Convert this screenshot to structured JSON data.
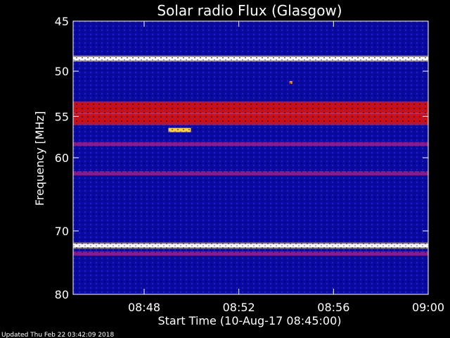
{
  "chart_data": {
    "type": "heatmap",
    "title": "Solar radio Flux (Glasgow)",
    "xlabel": "Start Time (10-Aug-17 08:45:00)",
    "ylabel": "Frequency [MHz]",
    "y_scale": "log",
    "ylim": [
      45,
      80
    ],
    "xlim": [
      "08:45",
      "09:00"
    ],
    "x_ticks": [
      "08:48",
      "08:52",
      "08:56",
      "09:00"
    ],
    "y_ticks": [
      "45",
      "50",
      "55",
      "60",
      "70",
      "80"
    ],
    "colormap": "blue-red-yellow-white",
    "colors": {
      "background": "#000000",
      "low": "#0a0aa0",
      "mid": "#cc1010",
      "high": "#ffffff"
    },
    "emission_bands": [
      {
        "freq_mhz": 48.7,
        "intensity": "very high",
        "note": "persistent white interference line"
      },
      {
        "freq_mhz": 54.0,
        "intensity": "high"
      },
      {
        "freq_mhz": 55.3,
        "intensity": "high"
      },
      {
        "freq_mhz": 58.3,
        "intensity": "medium"
      },
      {
        "freq_mhz": 62.0,
        "intensity": "medium"
      },
      {
        "freq_mhz": 72.2,
        "intensity": "very high",
        "note": "persistent white interference line"
      },
      {
        "freq_mhz": 73.4,
        "intensity": "medium"
      }
    ],
    "spots": [
      {
        "time": "08:49:30",
        "freq_mhz": 56.6,
        "intensity": "high"
      },
      {
        "time": "08:54:12",
        "freq_mhz": 51.2,
        "intensity": "medium"
      }
    ]
  },
  "footer": {
    "updated": "Updated Thu Feb 22 03:42:09 2018"
  }
}
